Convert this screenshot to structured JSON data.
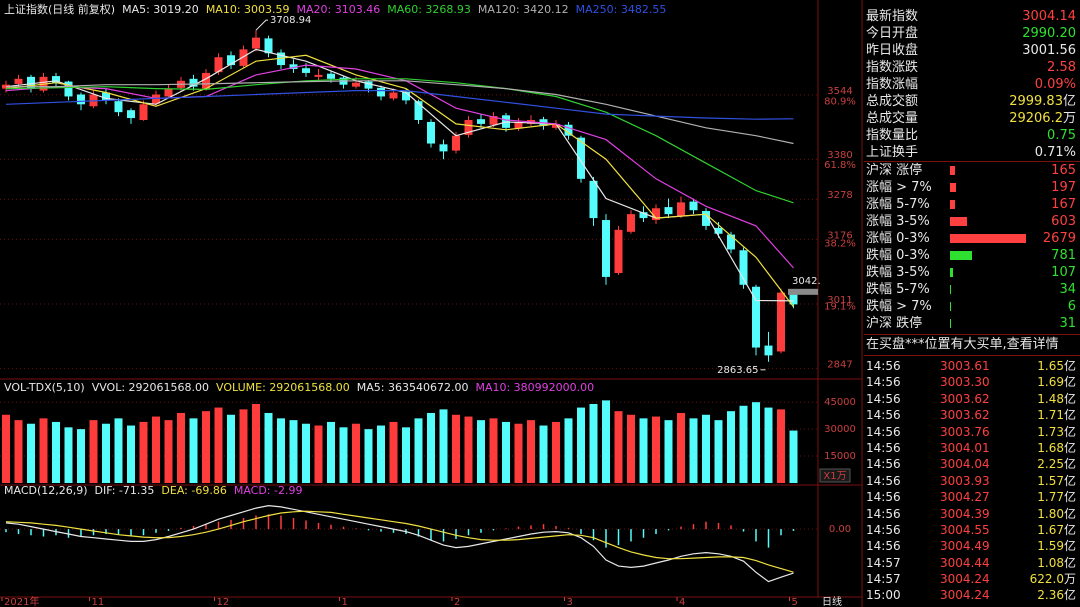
{
  "chart_data": [
    {
      "type": "candlestick",
      "title": "上证指数(日线 前复权)",
      "ylim": [
        2830,
        3740
      ],
      "yticks": [
        3544,
        3380,
        3278,
        3176,
        3011,
        2847
      ],
      "levels": [
        {
          "value": 3547,
          "label": "80.9%"
        },
        {
          "value": 3386,
          "label": "61.8%"
        },
        {
          "value": 3186,
          "label": "38.2%"
        },
        {
          "value": 3025,
          "label": "19.1%"
        }
      ],
      "up_color": "#ff3c3c",
      "down_color": "#54fcfc",
      "categories": [
        "2021年",
        null,
        null,
        null,
        null,
        null,
        null,
        "11",
        null,
        null,
        null,
        null,
        null,
        null,
        null,
        null,
        null,
        "12",
        null,
        null,
        null,
        null,
        null,
        null,
        null,
        null,
        null,
        "1",
        null,
        null,
        null,
        null,
        null,
        null,
        null,
        null,
        "2",
        null,
        null,
        null,
        null,
        null,
        null,
        null,
        null,
        "3",
        null,
        null,
        null,
        null,
        null,
        null,
        null,
        null,
        "4",
        null,
        null,
        null,
        null,
        null,
        null,
        null,
        null,
        "5"
      ],
      "candles": [
        [
          3560,
          3580,
          3550,
          3570
        ],
        [
          3572,
          3595,
          3565,
          3585
        ],
        [
          3590,
          3595,
          3550,
          3560
        ],
        [
          3555,
          3600,
          3550,
          3590
        ],
        [
          3592,
          3600,
          3565,
          3575
        ],
        [
          3578,
          3580,
          3530,
          3540
        ],
        [
          3545,
          3550,
          3505,
          3520
        ],
        [
          3515,
          3555,
          3510,
          3545
        ],
        [
          3550,
          3560,
          3520,
          3530
        ],
        [
          3528,
          3535,
          3490,
          3500
        ],
        [
          3505,
          3510,
          3470,
          3485
        ],
        [
          3480,
          3530,
          3478,
          3520
        ],
        [
          3522,
          3555,
          3515,
          3545
        ],
        [
          3540,
          3570,
          3535,
          3560
        ],
        [
          3562,
          3590,
          3555,
          3580
        ],
        [
          3585,
          3595,
          3555,
          3565
        ],
        [
          3560,
          3610,
          3555,
          3600
        ],
        [
          3602,
          3650,
          3595,
          3640
        ],
        [
          3645,
          3655,
          3610,
          3620
        ],
        [
          3618,
          3670,
          3612,
          3660
        ],
        [
          3662,
          3708.94,
          3655,
          3690
        ],
        [
          3688,
          3695,
          3640,
          3650
        ],
        [
          3652,
          3660,
          3610,
          3620
        ],
        [
          3622,
          3635,
          3600,
          3610
        ],
        [
          3612,
          3625,
          3590,
          3600
        ],
        [
          3590,
          3610,
          3580,
          3595
        ],
        [
          3598,
          3605,
          3575,
          3585
        ],
        [
          3588,
          3592,
          3560,
          3570
        ],
        [
          3565,
          3590,
          3560,
          3575
        ],
        [
          3578,
          3582,
          3550,
          3560
        ],
        [
          3562,
          3568,
          3530,
          3540
        ],
        [
          3535,
          3560,
          3530,
          3550
        ],
        [
          3552,
          3558,
          3520,
          3530
        ],
        [
          3528,
          3532,
          3470,
          3480
        ],
        [
          3475,
          3482,
          3410,
          3420
        ],
        [
          3418,
          3430,
          3380,
          3400
        ],
        [
          3402,
          3450,
          3395,
          3440
        ],
        [
          3442,
          3490,
          3435,
          3480
        ],
        [
          3482,
          3495,
          3460,
          3470
        ],
        [
          3468,
          3500,
          3462,
          3490
        ],
        [
          3492,
          3498,
          3450,
          3460
        ],
        [
          3458,
          3485,
          3452,
          3475
        ],
        [
          3470,
          3492,
          3465,
          3480
        ],
        [
          3482,
          3488,
          3455,
          3465
        ],
        [
          3460,
          3480,
          3455,
          3470
        ],
        [
          3468,
          3475,
          3430,
          3440
        ],
        [
          3435,
          3440,
          3320,
          3330
        ],
        [
          3325,
          3335,
          3210,
          3230
        ],
        [
          3225,
          3240,
          3060,
          3080
        ],
        [
          3090,
          3210,
          3085,
          3200
        ],
        [
          3195,
          3250,
          3190,
          3240
        ],
        [
          3245,
          3260,
          3220,
          3230
        ],
        [
          3225,
          3265,
          3215,
          3255
        ],
        [
          3258,
          3280,
          3230,
          3240
        ],
        [
          3235,
          3285,
          3230,
          3270
        ],
        [
          3272,
          3280,
          3240,
          3250
        ],
        [
          3248,
          3255,
          3200,
          3210
        ],
        [
          3205,
          3220,
          3180,
          3190
        ],
        [
          3188,
          3195,
          3140,
          3150
        ],
        [
          3148,
          3155,
          3050,
          3060
        ],
        [
          3055,
          3060,
          2880,
          2900
        ],
        [
          2905,
          2940,
          2863.65,
          2880
        ],
        [
          2890,
          3050,
          2885,
          3040
        ],
        [
          3035,
          3045,
          3000,
          3010
        ]
      ],
      "lines": {
        "x": [
          0,
          4,
          8,
          12,
          16,
          20,
          24,
          28,
          32,
          36,
          40,
          44,
          48,
          52,
          56,
          60,
          63
        ],
        "series": [
          {
            "name": "MA5: 3019.20",
            "color": "#e8e8e8",
            "values": [
              3565,
              3580,
              3535,
              3520,
              3585,
              3660,
              3630,
              3580,
              3550,
              3440,
              3475,
              3470,
              3280,
              3230,
              3240,
              3020,
              3019
            ]
          },
          {
            "name": "MA10: 3003.59",
            "color": "#f0e040",
            "values": [
              3560,
              3575,
              3550,
              3515,
              3560,
              3630,
              3645,
              3595,
              3560,
              3470,
              3455,
              3470,
              3380,
              3230,
              3240,
              3130,
              3004
            ]
          },
          {
            "name": "MA20: 3103.46",
            "color": "#e040e0",
            "values": [
              3555,
              3565,
              3560,
              3535,
              3540,
              3595,
              3620,
              3610,
              3580,
              3510,
              3480,
              3470,
              3430,
              3330,
              3260,
              3210,
              3103
            ]
          },
          {
            "name": "MA60: 3268.93",
            "color": "#30d030",
            "values": [
              3560,
              3562,
              3565,
              3560,
              3558,
              3570,
              3580,
              3585,
              3585,
              3575,
              3560,
              3540,
              3500,
              3440,
              3370,
              3300,
              3269
            ]
          },
          {
            "name": "MA120: 3420.12",
            "color": "#b0b0b0",
            "values": [
              3565,
              3565,
              3570,
              3570,
              3572,
              3575,
              3578,
              3580,
              3580,
              3570,
              3560,
              3545,
              3520,
              3490,
              3460,
              3440,
              3420
            ]
          },
          {
            "name": "MA250: 3482.55",
            "color": "#3050e0",
            "values": [
              3520,
              3525,
              3530,
              3535,
              3540,
              3545,
              3550,
              3555,
              3555,
              3540,
              3525,
              3510,
              3495,
              3490,
              3485,
              3482,
              3483
            ]
          }
        ]
      },
      "annotations": [
        {
          "value": 3708.94,
          "index": 20
        },
        {
          "value": 2863.65,
          "index": 61
        },
        {
          "value": 3042,
          "label": "3042.",
          "index": 63
        }
      ]
    },
    {
      "type": "volume",
      "title": "VOL-TDX(5,10)",
      "unit": "X1万",
      "legend": [
        {
          "text": "VVOL: 292061568.00",
          "color": "#e8e8e8"
        },
        {
          "text": "VOLUME: 292061568.00",
          "color": "#f0e040"
        },
        {
          "text": "MA5: 363540672.00",
          "color": "#e8e8e8"
        },
        {
          "text": "MA10: 380992000.00",
          "color": "#e040e0"
        }
      ],
      "ylim": [
        0,
        49000
      ],
      "yticks": [
        45000,
        30000,
        15000
      ],
      "values": [
        38000,
        35000,
        33000,
        36000,
        34000,
        31000,
        30000,
        35000,
        33000,
        36000,
        32000,
        34000,
        37000,
        35000,
        39000,
        36000,
        40000,
        42000,
        38000,
        41000,
        44000,
        39000,
        36000,
        35000,
        33000,
        32000,
        34000,
        31000,
        33000,
        30000,
        32000,
        34000,
        31000,
        36000,
        39000,
        41000,
        38000,
        37000,
        35000,
        36000,
        34000,
        33000,
        35000,
        32000,
        34000,
        36000,
        42000,
        44000,
        46000,
        40000,
        38000,
        36000,
        37000,
        35000,
        39000,
        36000,
        38000,
        35000,
        40000,
        43000,
        45000,
        42000,
        41000,
        29206
      ]
    },
    {
      "type": "macd",
      "title": "MACD(12,26,9)",
      "legend": [
        {
          "text": "DIF: -71.35",
          "color": "#e8e8e8"
        },
        {
          "text": "DEA: -69.86",
          "color": "#f0e040"
        },
        {
          "text": "MACD: -2.99",
          "color": "#e040e0"
        }
      ],
      "ylim": [
        -110,
        52
      ],
      "yticks": [
        {
          "value": 0,
          "label": "0.00"
        }
      ],
      "hist": [
        -5,
        -8,
        -10,
        -12,
        -10,
        -14,
        -12,
        -10,
        -8,
        -9,
        -11,
        -10,
        -6,
        -3,
        2,
        5,
        8,
        12,
        15,
        18,
        22,
        24,
        22,
        18,
        14,
        10,
        7,
        4,
        1,
        -2,
        -4,
        -6,
        -8,
        -12,
        -18,
        -20,
        -16,
        -10,
        -6,
        -2,
        1,
        4,
        6,
        8,
        5,
        2,
        -8,
        -18,
        -30,
        -26,
        -20,
        -14,
        -8,
        -2,
        4,
        8,
        12,
        10,
        6,
        -4,
        -20,
        -30,
        -10,
        -2.99
      ],
      "series": [
        {
          "name": "DIF",
          "color": "#e8e8e8",
          "values": [
            10,
            8,
            4,
            0,
            -4,
            -8,
            -12,
            -14,
            -16,
            -18,
            -20,
            -20,
            -17,
            -12,
            -6,
            0,
            8,
            16,
            22,
            28,
            34,
            38,
            36,
            32,
            28,
            24,
            20,
            16,
            12,
            8,
            4,
            0,
            -4,
            -10,
            -18,
            -26,
            -30,
            -28,
            -24,
            -20,
            -16,
            -12,
            -8,
            -5,
            -4,
            -6,
            -14,
            -28,
            -50,
            -60,
            -62,
            -60,
            -55,
            -50,
            -44,
            -40,
            -38,
            -40,
            -44,
            -52,
            -70,
            -85,
            -78,
            -71.35
          ]
        },
        {
          "name": "DEA",
          "color": "#f0e040",
          "values": [
            12,
            11,
            10,
            8,
            6,
            3,
            0,
            -3,
            -6,
            -9,
            -11,
            -13,
            -14,
            -14,
            -12,
            -9,
            -5,
            0,
            6,
            12,
            17,
            22,
            26,
            28,
            29,
            28,
            27,
            24,
            21,
            18,
            15,
            12,
            9,
            5,
            0,
            -5,
            -10,
            -14,
            -17,
            -18,
            -18,
            -17,
            -15,
            -13,
            -11,
            -9,
            -10,
            -14,
            -22,
            -30,
            -37,
            -42,
            -46,
            -48,
            -48,
            -47,
            -46,
            -45,
            -45,
            -46,
            -51,
            -58,
            -64,
            -69.86
          ]
        }
      ]
    }
  ],
  "x_axis_label": "日线",
  "panel": {
    "quote": [
      {
        "label": "最新指数",
        "value": "3004.14",
        "color": "#ff4040"
      },
      {
        "label": "今日开盘",
        "value": "2990.20",
        "color": "#30e030"
      },
      {
        "label": "昨日收盘",
        "value": "3001.56",
        "color": "#e8e8e8"
      },
      {
        "label": "指数涨跌",
        "value": "2.58",
        "color": "#ff4040"
      },
      {
        "label": "指数涨幅",
        "value": "0.09%",
        "color": "#ff4040"
      },
      {
        "label": "总成交额",
        "value": "2999.83",
        "unit": "亿",
        "color": "#f0e040"
      },
      {
        "label": "总成交量",
        "value": "29206.2",
        "unit": "万",
        "color": "#f0e040"
      },
      {
        "label": "指数量比",
        "value": "0.75",
        "color": "#30e030"
      },
      {
        "label": "上证换手",
        "value": "0.71%",
        "color": "#e8e8e8"
      }
    ],
    "distribution": [
      {
        "label": "沪深 涨停",
        "count": 165,
        "color": "#ff4040"
      },
      {
        "label": "涨幅 > 7%",
        "count": 197,
        "color": "#ff4040"
      },
      {
        "label": "涨幅 5-7%",
        "count": 167,
        "color": "#ff4040"
      },
      {
        "label": "涨幅 3-5%",
        "count": 603,
        "color": "#ff4040"
      },
      {
        "label": "涨幅 0-3%",
        "count": 2679,
        "color": "#ff4040"
      },
      {
        "label": "跌幅 0-3%",
        "count": 781,
        "color": "#30e030"
      },
      {
        "label": "跌幅 3-5%",
        "count": 107,
        "color": "#30e030"
      },
      {
        "label": "跌幅 5-7%",
        "count": 34,
        "color": "#30e030"
      },
      {
        "label": "跌幅 > 7%",
        "count": 6,
        "color": "#30e030"
      },
      {
        "label": "沪深 跌停",
        "count": 31,
        "color": "#30e030"
      }
    ],
    "banner": "在买盘***位置有大买单,查看详情",
    "ticks": [
      [
        "14:56",
        "3003.61",
        "1.65",
        "亿"
      ],
      [
        "14:56",
        "3003.30",
        "1.69",
        "亿"
      ],
      [
        "14:56",
        "3003.62",
        "1.48",
        "亿"
      ],
      [
        "14:56",
        "3003.62",
        "1.71",
        "亿"
      ],
      [
        "14:56",
        "3003.76",
        "1.73",
        "亿"
      ],
      [
        "14:56",
        "3004.01",
        "1.68",
        "亿"
      ],
      [
        "14:56",
        "3004.04",
        "2.25",
        "亿"
      ],
      [
        "14:56",
        "3003.93",
        "1.57",
        "亿"
      ],
      [
        "14:56",
        "3004.27",
        "1.77",
        "亿"
      ],
      [
        "14:56",
        "3004.39",
        "1.80",
        "亿"
      ],
      [
        "14:56",
        "3004.55",
        "1.67",
        "亿"
      ],
      [
        "14:56",
        "3004.49",
        "1.59",
        "亿"
      ],
      [
        "14:57",
        "3004.44",
        "1.08",
        "亿"
      ],
      [
        "14:57",
        "3004.24",
        "622.0",
        "万"
      ],
      [
        "15:00",
        "3004.24",
        "2.36",
        "亿"
      ]
    ]
  }
}
